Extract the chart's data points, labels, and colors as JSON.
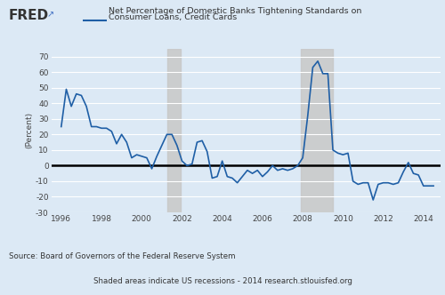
{
  "title_line1": "Net Percentage of Domestic Banks Tightening Standards on",
  "title_line2": "Consumer Loans, Credit Cards",
  "ylabel": "(Percent)",
  "source_text": "Source: Board of Governors of the Federal Reserve System",
  "shading_text": "Shaded areas indicate US recessions - 2014 research.stlouisfed.org",
  "background_color": "#dce9f5",
  "plot_bg_color": "#dce9f5",
  "line_color": "#1f5fa6",
  "zero_line_color": "#000000",
  "grid_color": "#ffffff",
  "recession_color": "#c8c8c8",
  "recession_alpha": 0.85,
  "ylim": [
    -30,
    75
  ],
  "yticks": [
    -30,
    -20,
    -10,
    0,
    10,
    20,
    30,
    40,
    50,
    60,
    70
  ],
  "xlim_start": 1995.5,
  "xlim_end": 2014.85,
  "xtick_labels": [
    "1996",
    "1998",
    "2000",
    "2002",
    "2004",
    "2006",
    "2008",
    "2010",
    "2012",
    "2014"
  ],
  "xtick_values": [
    1996,
    1998,
    2000,
    2002,
    2004,
    2006,
    2008,
    2010,
    2012,
    2014
  ],
  "recessions": [
    {
      "start": 2001.25,
      "end": 2001.92
    },
    {
      "start": 2007.92,
      "end": 2009.5
    }
  ],
  "dates": [
    1996.0,
    1996.25,
    1996.5,
    1996.75,
    1997.0,
    1997.25,
    1997.5,
    1997.75,
    1998.0,
    1998.25,
    1998.5,
    1998.75,
    1999.0,
    1999.25,
    1999.5,
    1999.75,
    2000.0,
    2000.25,
    2000.5,
    2000.75,
    2001.0,
    2001.25,
    2001.5,
    2001.75,
    2002.0,
    2002.25,
    2002.5,
    2002.75,
    2003.0,
    2003.25,
    2003.5,
    2003.75,
    2004.0,
    2004.25,
    2004.5,
    2004.75,
    2005.0,
    2005.25,
    2005.5,
    2005.75,
    2006.0,
    2006.25,
    2006.5,
    2006.75,
    2007.0,
    2007.25,
    2007.5,
    2007.75,
    2008.0,
    2008.25,
    2008.5,
    2008.75,
    2009.0,
    2009.25,
    2009.5,
    2009.75,
    2010.0,
    2010.25,
    2010.5,
    2010.75,
    2011.0,
    2011.25,
    2011.5,
    2011.75,
    2012.0,
    2012.25,
    2012.5,
    2012.75,
    2013.0,
    2013.25,
    2013.5,
    2013.75,
    2014.0,
    2014.25,
    2014.5
  ],
  "values": [
    25,
    49,
    38,
    46,
    45,
    38,
    25,
    25,
    24,
    24,
    22,
    14,
    20,
    15,
    5,
    7,
    6,
    5,
    -2,
    6,
    13,
    20,
    20,
    13,
    3,
    0,
    1,
    15,
    16,
    9,
    -8,
    -7,
    3,
    -7,
    -8,
    -11,
    -7,
    -3,
    -5,
    -3,
    -7,
    -4,
    0,
    -3,
    -2,
    -3,
    -2,
    0,
    5,
    32,
    63,
    67,
    59,
    59,
    10,
    8,
    7,
    8,
    -10,
    -12,
    -11,
    -11,
    -22,
    -12,
    -11,
    -11,
    -12,
    -11,
    -4,
    2,
    -5,
    -6,
    -13,
    -13,
    -13
  ]
}
